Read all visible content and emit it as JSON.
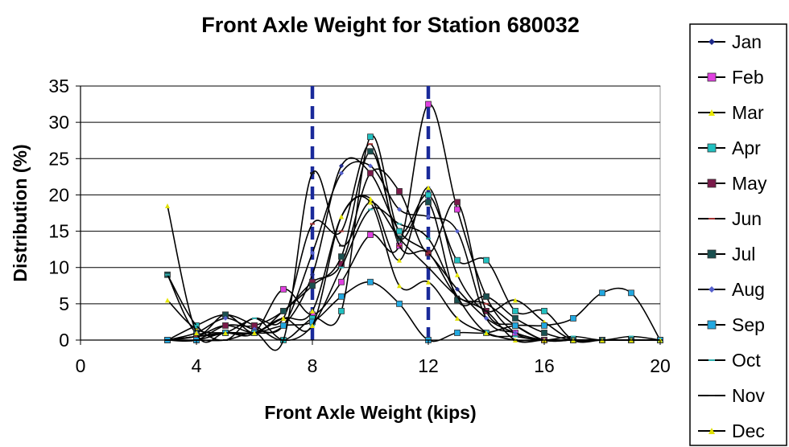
{
  "chart_data": {
    "type": "line",
    "title": "Front Axle Weight for Station 680032",
    "xlabel": "Front Axle Weight (kips)",
    "ylabel": "Distribution (%)",
    "xlim": [
      0,
      20
    ],
    "ylim": [
      0,
      35
    ],
    "x_ticks": [
      0,
      4,
      8,
      12,
      16,
      20
    ],
    "y_ticks": [
      0,
      5,
      10,
      15,
      20,
      25,
      30,
      35
    ],
    "grid": "horizontal",
    "legend_position": "right",
    "reference_lines": [
      {
        "x": 8,
        "style": "dashed",
        "color": "#1a2a9a"
      },
      {
        "x": 12,
        "style": "dashed",
        "color": "#1a2a9a"
      }
    ],
    "x": [
      3,
      4,
      5,
      6,
      7,
      8,
      9,
      10,
      11,
      12,
      13,
      14,
      15,
      16,
      17,
      18,
      19,
      20
    ],
    "series": [
      {
        "name": "Jan",
        "color": "#1f2a8a",
        "marker": "diamond",
        "values": [
          0,
          0.5,
          2,
          1,
          2,
          9,
          24,
          23,
          15,
          12,
          7,
          3,
          1,
          0,
          0,
          0,
          0,
          0
        ]
      },
      {
        "name": "Feb",
        "color": "#e040e0",
        "marker": "square",
        "values": [
          0,
          0.5,
          1,
          1,
          7,
          3.5,
          8,
          14.5,
          13,
          32.5,
          18,
          6,
          1,
          0,
          0,
          0,
          0,
          0
        ]
      },
      {
        "name": "Mar",
        "color": "#e8e800",
        "marker": "triangle",
        "values": [
          5.5,
          1.5,
          1,
          1,
          3,
          4,
          17,
          19.5,
          11,
          21,
          9,
          4,
          5.5,
          2.5,
          0,
          0,
          0,
          0
        ]
      },
      {
        "name": "Apr",
        "color": "#20c0c0",
        "marker": "square",
        "values": [
          0,
          2,
          3.5,
          2,
          0,
          3,
          4,
          28,
          15,
          20,
          11,
          11,
          4,
          4,
          0,
          0,
          0,
          0
        ]
      },
      {
        "name": "May",
        "color": "#7a1a4a",
        "marker": "square",
        "values": [
          0,
          0,
          2,
          2,
          4,
          8,
          10.5,
          23,
          20.5,
          12,
          19,
          4,
          2,
          0,
          0,
          0,
          0,
          0
        ]
      },
      {
        "name": "Jun",
        "color": "#a03030",
        "marker": "dash",
        "values": [
          0,
          0.5,
          1,
          3,
          3,
          16,
          15,
          27,
          13,
          12,
          6,
          5,
          2,
          0,
          0,
          0,
          0,
          0
        ]
      },
      {
        "name": "Jul",
        "color": "#1a5050",
        "marker": "square",
        "values": [
          9,
          1,
          3.5,
          1,
          4,
          7.5,
          11.5,
          26,
          14,
          19,
          5.5,
          6,
          3,
          1,
          0,
          0,
          0,
          0
        ]
      },
      {
        "name": "Aug",
        "color": "#5560cc",
        "marker": "diamond",
        "values": [
          0,
          1,
          3,
          1.5,
          2,
          12,
          23,
          24,
          18,
          17,
          15,
          3,
          1,
          0,
          0,
          0,
          0,
          0
        ]
      },
      {
        "name": "Sep",
        "color": "#22a8e0",
        "marker": "square",
        "values": [
          0,
          0,
          1,
          1,
          2,
          2.5,
          6,
          8,
          5,
          0,
          1,
          1,
          2,
          2,
          3,
          6.5,
          6.5,
          0
        ]
      },
      {
        "name": "Oct",
        "color": "#30b0b0",
        "marker": "dash",
        "values": [
          9,
          2,
          0,
          3,
          0,
          2,
          10,
          18,
          16,
          14,
          6,
          1,
          0.5,
          0,
          0.5,
          0,
          0.5,
          0
        ]
      },
      {
        "name": "Nov",
        "color": "#1a1a1a",
        "marker": "dash",
        "values": [
          0,
          0,
          0,
          1,
          0,
          23,
          13,
          19,
          14,
          10,
          6,
          4,
          0,
          0,
          0,
          0,
          0,
          0
        ]
      },
      {
        "name": "Dec",
        "color": "#e0e000",
        "marker": "triangle",
        "values": [
          18.5,
          1,
          1,
          1,
          3,
          2,
          17,
          19,
          7.5,
          8,
          3,
          1,
          0,
          0,
          0,
          0,
          0,
          0
        ]
      }
    ]
  }
}
